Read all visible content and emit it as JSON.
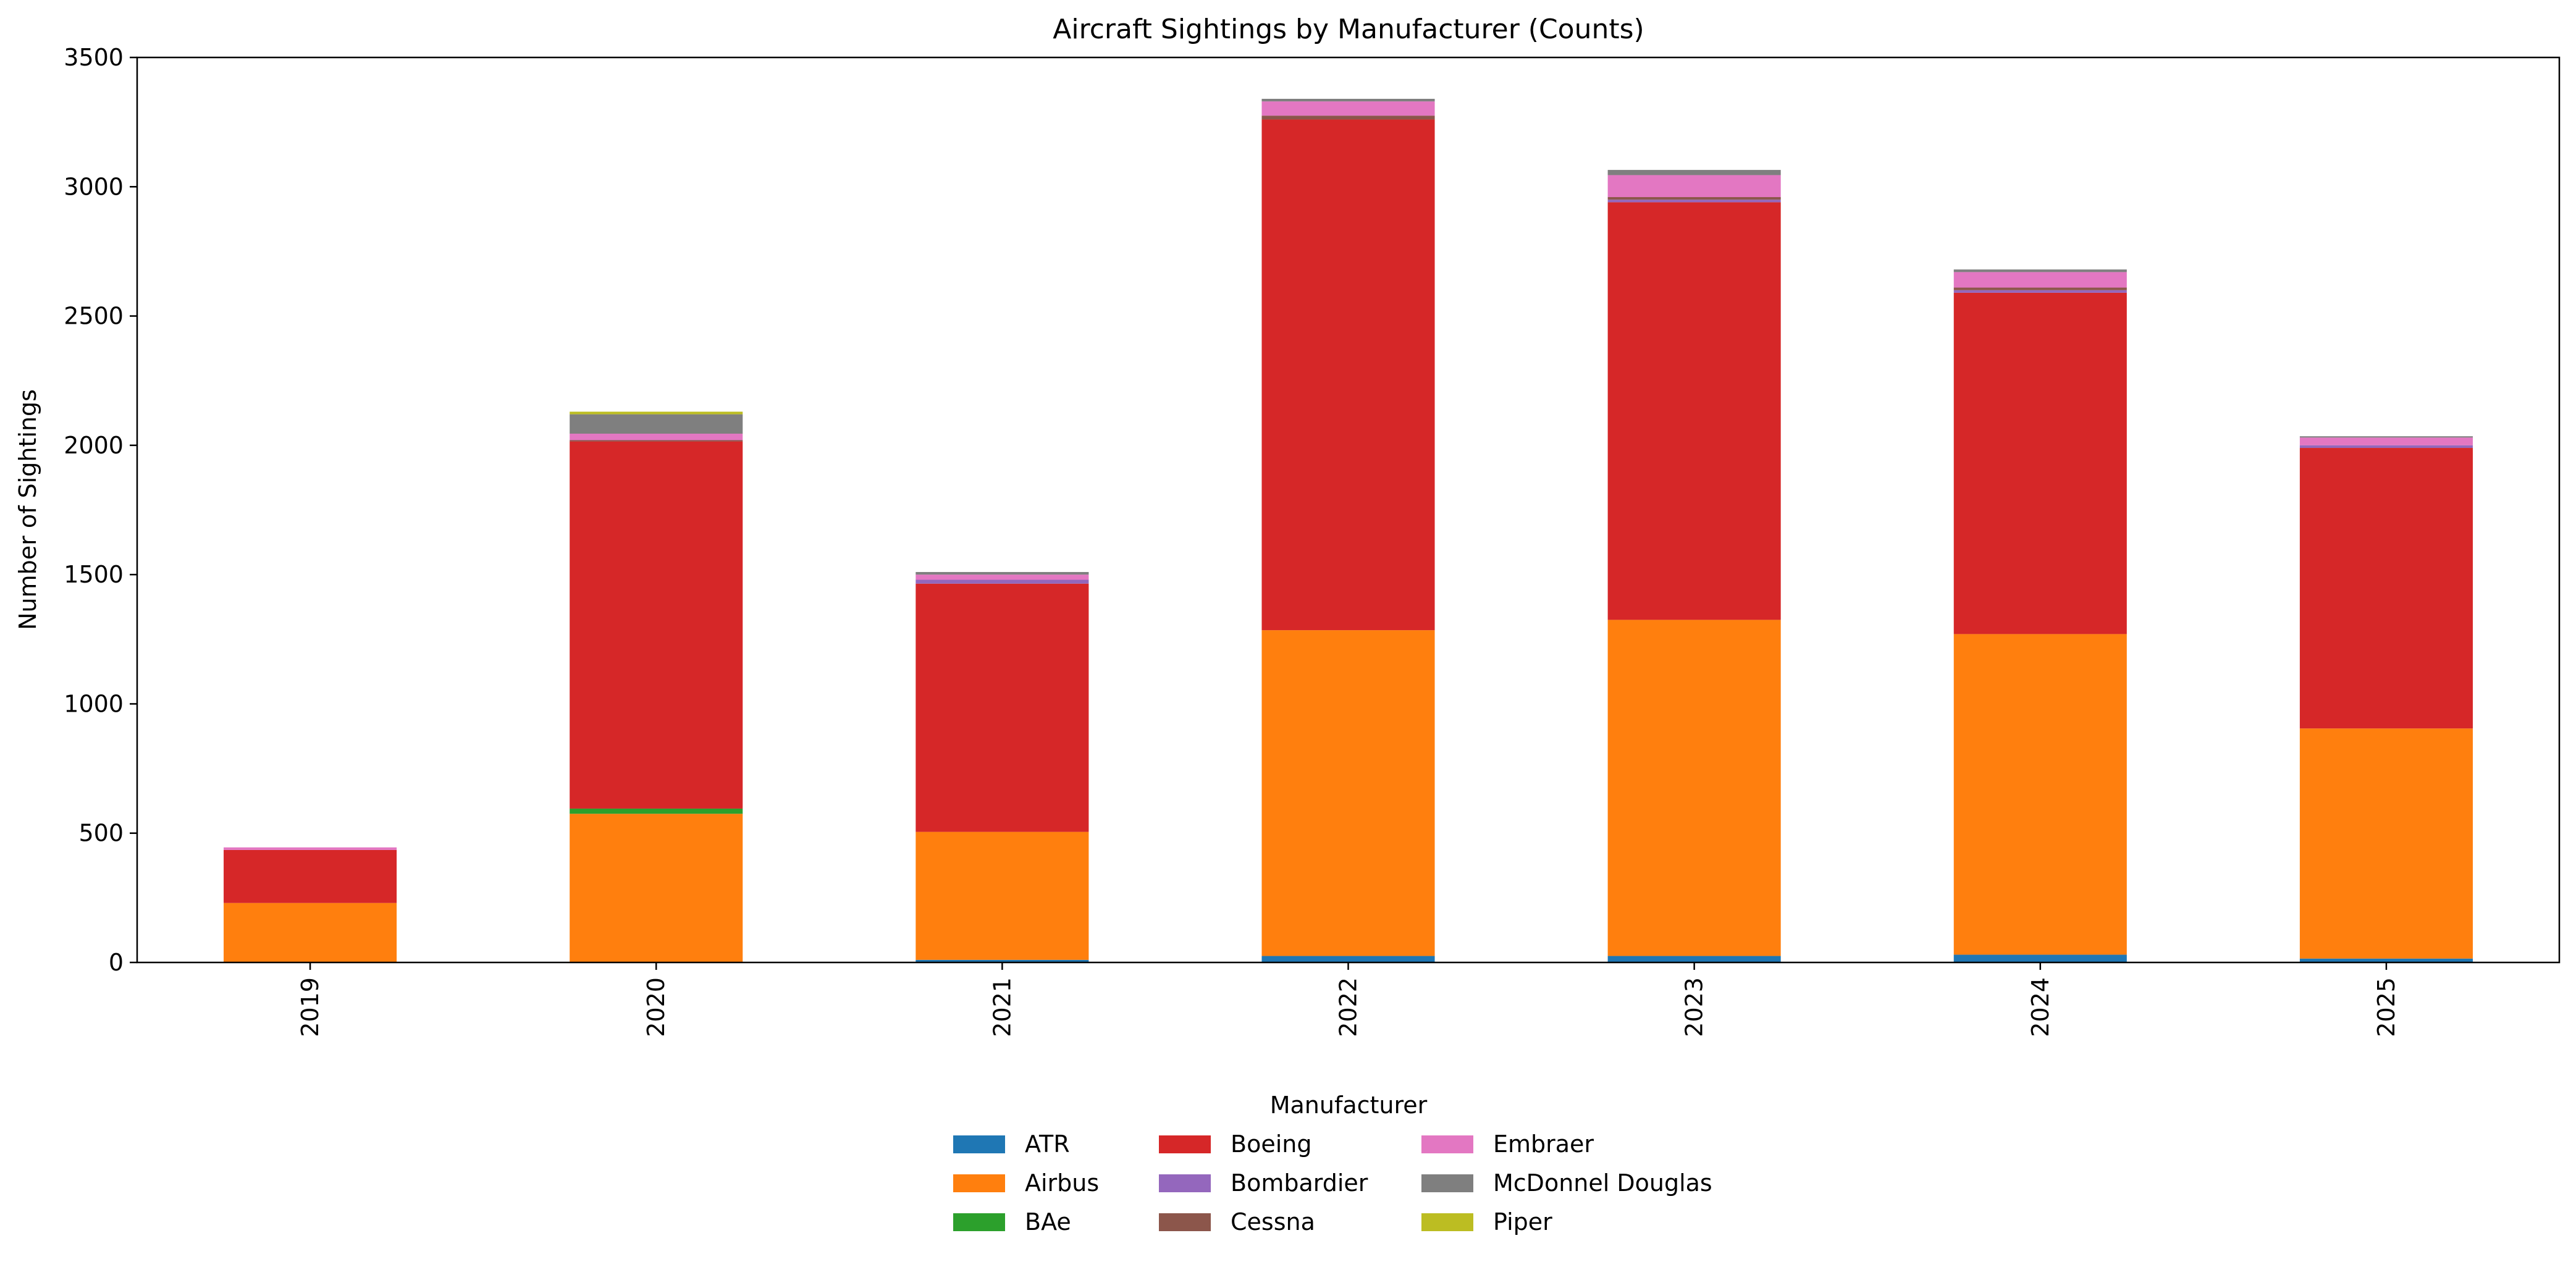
{
  "chart_data": {
    "type": "bar",
    "stacked": true,
    "title": "Aircraft Sightings by Manufacturer (Counts)",
    "xlabel": "",
    "ylabel": "Number of Sightings",
    "ylim": [
      0,
      3500
    ],
    "yticks": [
      "0",
      "500",
      "1000",
      "1500",
      "2000",
      "2500",
      "3000",
      "3500"
    ],
    "categories": [
      "2019",
      "2020",
      "2021",
      "2022",
      "2023",
      "2024",
      "2025"
    ],
    "legend": {
      "title": "Manufacturer",
      "placement": "bottom-center",
      "columns": 3
    },
    "grid": false,
    "series": [
      {
        "name": "ATR",
        "color": "#1f77b4",
        "values": [
          0,
          0,
          10,
          25,
          25,
          30,
          15
        ]
      },
      {
        "name": "Airbus",
        "color": "#ff7f0e",
        "values": [
          230,
          575,
          495,
          1260,
          1300,
          1240,
          890
        ]
      },
      {
        "name": "BAe",
        "color": "#2ca02c",
        "values": [
          0,
          20,
          0,
          0,
          0,
          0,
          0
        ]
      },
      {
        "name": "Boeing",
        "color": "#d62728",
        "values": [
          205,
          1420,
          960,
          1975,
          1615,
          1320,
          1085
        ]
      },
      {
        "name": "Bombardier",
        "color": "#9467bd",
        "values": [
          0,
          0,
          15,
          0,
          10,
          10,
          10
        ]
      },
      {
        "name": "Cessna",
        "color": "#8c564b",
        "values": [
          0,
          5,
          0,
          15,
          10,
          10,
          0
        ]
      },
      {
        "name": "Embraer",
        "color": "#e377c2",
        "values": [
          10,
          25,
          20,
          55,
          85,
          60,
          30
        ]
      },
      {
        "name": "McDonnel Douglas",
        "color": "#7f7f7f",
        "values": [
          0,
          75,
          10,
          10,
          20,
          10,
          5
        ]
      },
      {
        "name": "Piper",
        "color": "#bcbd22",
        "values": [
          0,
          10,
          0,
          0,
          0,
          0,
          0
        ]
      }
    ]
  }
}
